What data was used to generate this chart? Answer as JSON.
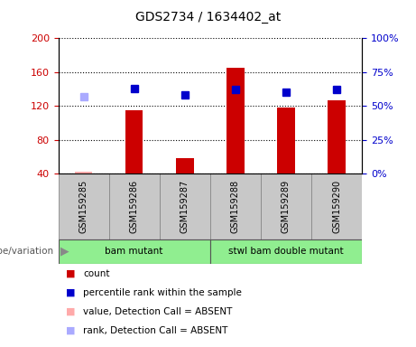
{
  "title": "GDS2734 / 1634402_at",
  "samples": [
    "GSM159285",
    "GSM159286",
    "GSM159287",
    "GSM159288",
    "GSM159289",
    "GSM159290"
  ],
  "group1_name": "bam mutant",
  "group2_name": "stwl bam double mutant",
  "group_color": "#90EE90",
  "count_values": [
    42,
    115,
    58,
    165,
    118,
    127
  ],
  "rank_values": [
    57,
    63,
    58,
    62,
    60,
    62
  ],
  "absent_mask": [
    true,
    false,
    false,
    false,
    false,
    false
  ],
  "count_color_present": "#CC0000",
  "count_color_absent": "#FFAAAA",
  "rank_color_present": "#0000CC",
  "rank_color_absent": "#AAAAFF",
  "ylim_left": [
    40,
    200
  ],
  "ylim_right": [
    0,
    100
  ],
  "yticks_left": [
    40,
    80,
    120,
    160,
    200
  ],
  "yticks_right": [
    0,
    25,
    50,
    75,
    100
  ],
  "bar_width": 0.35,
  "marker_size": 6,
  "sample_box_color": "#C8C8C8",
  "title_fontsize": 10,
  "tick_fontsize": 8,
  "label_fontsize": 7.5,
  "legend_fontsize": 7.5
}
